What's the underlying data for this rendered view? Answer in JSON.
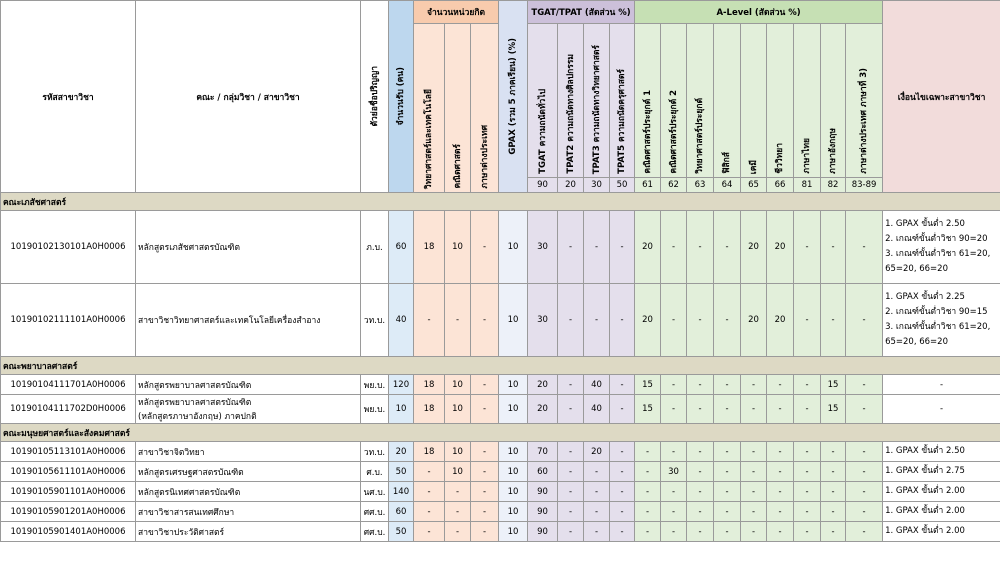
{
  "headers": {
    "code": "รหัสสาขาวิชา",
    "program": "คณะ / กลุ่มวิชา / สาขาวิชา",
    "degree": "ตัวย่อชื่อปริญญา",
    "seats": "จำนวนรับ (คน)",
    "credits_group": "จำนวนหน่วยกิต",
    "credits": [
      "วิทยาศาสตร์และเทคโนโลยี",
      "คณิตศาสตร์",
      "ภาษาต่างประเทศ"
    ],
    "gpax": "GPAX (รวม 5 ภาคเรียน) (%)",
    "tgat_group": "TGAT/TPAT (สัดส่วน %)",
    "tgat": [
      {
        "label": "TGAT  ความถนัดทั่วไป",
        "code": "90"
      },
      {
        "label": "TPAT2  ความถนัดทางศิลปกรรม",
        "code": "20"
      },
      {
        "label": "TPAT3  ความถนัดทางวิทยาศาสตร์",
        "code": "30"
      },
      {
        "label": "TPAT5  ความถนัดครุศาสตร์",
        "code": "50"
      }
    ],
    "alevel_group": "A-Level (สัดส่วน %)",
    "alevel": [
      {
        "label": "คณิตศาสตร์ประยุกต์ 1",
        "code": "61"
      },
      {
        "label": "คณิตศาสตร์ประยุกต์ 2",
        "code": "62"
      },
      {
        "label": "วิทยาศาสตร์ประยุกต์",
        "code": "63"
      },
      {
        "label": "ฟิสิกส์",
        "code": "64"
      },
      {
        "label": "เคมี",
        "code": "65"
      },
      {
        "label": "ชีววิทยา",
        "code": "66"
      },
      {
        "label": "ภาษาไทย",
        "code": "81"
      },
      {
        "label": "ภาษาอังกฤษ",
        "code": "82"
      },
      {
        "label": "ภาษาต่างประเทศ ภาษาที่ 3)",
        "code": "83-89"
      }
    ],
    "conditions": "เงื่อนไขเฉพาะสาขาวิชา"
  },
  "sections": [
    {
      "title": "คณะเภสัชศาสตร์",
      "rows": [
        {
          "code": "10190102130101A0H0006",
          "program": [
            "หลักสูตรเภสัชศาสตรบัณฑิต"
          ],
          "degree": "ภ.บ.",
          "seats": "60",
          "cells": [
            "18",
            "10",
            "-",
            "10",
            "30",
            "-",
            "-",
            "-",
            "20",
            "-",
            "-",
            "-",
            "20",
            "20",
            "-",
            "-",
            "-"
          ],
          "conditions": [
            "1. GPAX ขั้นต่ำ 2.50",
            "2. เกณฑ์ขั้นต่ำวิชา 90=20",
            "3. เกณฑ์ขั้นต่ำวิชา 61=20,",
            "65=20, 66=20"
          ]
        },
        {
          "code": "10190102111101A0H0006",
          "program": [
            "สาขาวิชาวิทยาศาสตร์และเทคโนโลยีเครื่องสำอาง"
          ],
          "degree": "วท.บ.",
          "seats": "40",
          "cells": [
            "-",
            "-",
            "-",
            "10",
            "30",
            "-",
            "-",
            "-",
            "20",
            "-",
            "-",
            "-",
            "20",
            "20",
            "-",
            "-",
            "-"
          ],
          "conditions": [
            "1. GPAX ขั้นต่ำ 2.25",
            "2. เกณฑ์ขั้นต่ำวิชา 90=15",
            "3. เกณฑ์ขั้นต่ำวิชา 61=20,",
            "65=20, 66=20"
          ]
        }
      ]
    },
    {
      "title": "คณะพยาบาลศาสตร์",
      "rows": [
        {
          "code": "10190104111701A0H0006",
          "program": [
            "หลักสูตรพยาบาลศาสตรบัณฑิต"
          ],
          "degree": "พย.บ.",
          "seats": "120",
          "cells": [
            "18",
            "10",
            "-",
            "10",
            "20",
            "-",
            "40",
            "-",
            "15",
            "-",
            "-",
            "-",
            "-",
            "-",
            "-",
            "15",
            "-"
          ],
          "conditions": [
            "-"
          ]
        },
        {
          "code": "10190104111702D0H0006",
          "program": [
            "หลักสูตรพยาบาลศาสตรบัณฑิต",
            "(หลักสูตรภาษาอังกฤษ) ภาคปกติ"
          ],
          "degree": "พย.บ.",
          "seats": "10",
          "cells": [
            "18",
            "10",
            "-",
            "10",
            "20",
            "-",
            "40",
            "-",
            "15",
            "-",
            "-",
            "-",
            "-",
            "-",
            "-",
            "15",
            "-"
          ],
          "conditions": [
            "-"
          ]
        }
      ]
    },
    {
      "title": "คณะมนุษยศาสตร์และสังคมศาสตร์",
      "rows": [
        {
          "code": "10190105113101A0H0006",
          "program": [
            "สาขาวิชาจิตวิทยา"
          ],
          "degree": "วท.บ.",
          "seats": "20",
          "cells": [
            "18",
            "10",
            "-",
            "10",
            "70",
            "-",
            "20",
            "-",
            "-",
            "-",
            "-",
            "-",
            "-",
            "-",
            "-",
            "-",
            "-"
          ],
          "conditions": [
            "1. GPAX ขั้นต่ำ 2.50"
          ]
        },
        {
          "code": "10190105611101A0H0006",
          "program": [
            "หลักสูตรเศรษฐศาสตรบัณฑิต"
          ],
          "degree": "ศ.บ.",
          "seats": "50",
          "cells": [
            "-",
            "10",
            "-",
            "10",
            "60",
            "-",
            "-",
            "-",
            "-",
            "30",
            "-",
            "-",
            "-",
            "-",
            "-",
            "-",
            "-"
          ],
          "conditions": [
            "1. GPAX ขั้นต่ำ 2.75"
          ]
        },
        {
          "code": "10190105901101A0H0006",
          "program": [
            "หลักสูตรนิเทศศาสตรบัณฑิต"
          ],
          "degree": "นศ.บ.",
          "seats": "140",
          "cells": [
            "-",
            "-",
            "-",
            "10",
            "90",
            "-",
            "-",
            "-",
            "-",
            "-",
            "-",
            "-",
            "-",
            "-",
            "-",
            "-",
            "-"
          ],
          "conditions": [
            "1. GPAX ขั้นต่ำ 2.00"
          ]
        },
        {
          "code": "10190105901201A0H0006",
          "program": [
            "สาขาวิชาสารสนเทศศึกษา"
          ],
          "degree": "ศศ.บ.",
          "seats": "60",
          "cells": [
            "-",
            "-",
            "-",
            "10",
            "90",
            "-",
            "-",
            "-",
            "-",
            "-",
            "-",
            "-",
            "-",
            "-",
            "-",
            "-",
            "-"
          ],
          "conditions": [
            "1. GPAX ขั้นต่ำ 2.00"
          ]
        },
        {
          "code": "10190105901401A0H0006",
          "program": [
            "สาขาวิชาประวัติศาสตร์"
          ],
          "degree": "ศศ.บ.",
          "seats": "50",
          "cells": [
            "-",
            "-",
            "-",
            "10",
            "90",
            "-",
            "-",
            "-",
            "-",
            "-",
            "-",
            "-",
            "-",
            "-",
            "-",
            "-",
            "-"
          ],
          "conditions": [
            "1. GPAX ขั้นต่ำ 2.00"
          ]
        }
      ]
    }
  ]
}
